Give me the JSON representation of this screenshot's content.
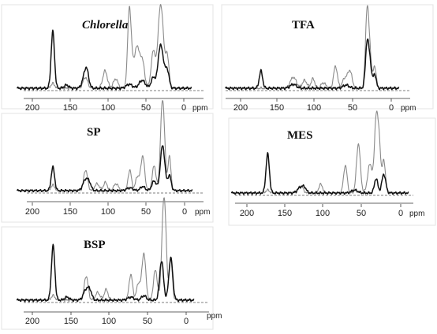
{
  "chart_data": [
    {
      "type": "line",
      "title": "Chlorella",
      "xlabel": "ppm",
      "xlim": [
        220,
        -10
      ],
      "x_ticks": [
        200,
        150,
        100,
        50,
        0
      ],
      "series": [
        {
          "color": "#111111",
          "peaks": [
            [
              173,
              0.72,
              2.2
            ],
            [
              155,
              0.04,
              3
            ],
            [
              130,
              0.18,
              3.5
            ],
            [
              128,
              0.1,
              2.5
            ],
            [
              72,
              0.05,
              4
            ],
            [
              55,
              0.1,
              4
            ],
            [
              40,
              0.14,
              3
            ],
            [
              32,
              0.42,
              2.5
            ],
            [
              28,
              0.32,
              2.5
            ],
            [
              22,
              0.24,
              2.5
            ]
          ]
        },
        {
          "color": "#8a8a8a",
          "peaks": [
            [
              173,
              0.06,
              2.5
            ],
            [
              130,
              0.14,
              3
            ],
            [
              104,
              0.22,
              3
            ],
            [
              90,
              0.12,
              3
            ],
            [
              72,
              1.0,
              2.2
            ],
            [
              68,
              0.25,
              2
            ],
            [
              62,
              0.52,
              3
            ],
            [
              55,
              0.36,
              3
            ],
            [
              40,
              0.48,
              3
            ],
            [
              32,
              0.84,
              2.5
            ],
            [
              28,
              0.62,
              2.3
            ],
            [
              22,
              0.44,
              2.3
            ]
          ]
        }
      ]
    },
    {
      "type": "line",
      "title": "TFA",
      "xlabel": "ppm",
      "xlim": [
        220,
        -10
      ],
      "x_ticks": [
        200,
        150,
        100,
        50,
        0
      ],
      "series": [
        {
          "color": "#111111",
          "peaks": [
            [
              173,
              0.22,
              2.2
            ],
            [
              130,
              0.05,
              4
            ],
            [
              60,
              0.04,
              4
            ],
            [
              32,
              0.58,
              2.2
            ],
            [
              28,
              0.28,
              2
            ],
            [
              22,
              0.18,
              2
            ]
          ]
        },
        {
          "color": "#8a8a8a",
          "peaks": [
            [
              130,
              0.14,
              4
            ],
            [
              115,
              0.1,
              3
            ],
            [
              104,
              0.12,
              2.5
            ],
            [
              90,
              0.07,
              3
            ],
            [
              74,
              0.28,
              2.5
            ],
            [
              62,
              0.12,
              3
            ],
            [
              55,
              0.22,
              3
            ],
            [
              32,
              1.0,
              2.2
            ],
            [
              28,
              0.36,
              2
            ],
            [
              22,
              0.28,
              2
            ]
          ]
        }
      ]
    },
    {
      "type": "line",
      "title": "SP",
      "xlabel": "ppm",
      "xlim": [
        220,
        -10
      ],
      "x_ticks": [
        200,
        150,
        100,
        50,
        0
      ],
      "series": [
        {
          "color": "#111111",
          "peaks": [
            [
              173,
              0.34,
              2.2
            ],
            [
              130,
              0.16,
              3.5
            ],
            [
              125,
              0.08,
              2.5
            ],
            [
              72,
              0.04,
              4
            ],
            [
              55,
              0.06,
              3
            ],
            [
              40,
              0.14,
              3
            ],
            [
              30,
              0.48,
              2.5
            ],
            [
              27,
              0.3,
              2.3
            ],
            [
              20,
              0.22,
              2.3
            ]
          ]
        },
        {
          "color": "#8a8a8a",
          "peaks": [
            [
              173,
              0.08,
              2.5
            ],
            [
              130,
              0.3,
              2.5
            ],
            [
              115,
              0.1,
              3
            ],
            [
              104,
              0.12,
              2.5
            ],
            [
              90,
              0.1,
              3
            ],
            [
              72,
              0.3,
              2.2
            ],
            [
              62,
              0.2,
              2.5
            ],
            [
              55,
              0.5,
              2.5
            ],
            [
              40,
              0.36,
              2.5
            ],
            [
              30,
              1.0,
              2.2
            ],
            [
              27,
              0.66,
              2
            ],
            [
              20,
              0.5,
              2
            ]
          ]
        }
      ]
    },
    {
      "type": "line",
      "title": "MES",
      "xlabel": "ppm",
      "xlim": [
        220,
        -10
      ],
      "x_ticks": [
        200,
        150,
        100,
        50,
        0
      ],
      "series": [
        {
          "color": "#111111",
          "peaks": [
            [
              173,
              0.54,
              2.2
            ],
            [
              130,
              0.08,
              4
            ],
            [
              125,
              0.05,
              2.5
            ],
            [
              60,
              0.04,
              4
            ],
            [
              32,
              0.2,
              2.2
            ],
            [
              22,
              0.26,
              2.5
            ]
          ]
        },
        {
          "color": "#8a8a8a",
          "peaks": [
            [
              173,
              0.04,
              2.5
            ],
            [
              130,
              0.1,
              3
            ],
            [
              104,
              0.12,
              2.5
            ],
            [
              72,
              0.38,
              2.3
            ],
            [
              55,
              0.68,
              2.5
            ],
            [
              40,
              0.4,
              3
            ],
            [
              32,
              1.0,
              2.2
            ],
            [
              28,
              0.66,
              2
            ],
            [
              22,
              0.46,
              2
            ]
          ]
        }
      ]
    },
    {
      "type": "line",
      "title": "BSP",
      "xlabel": "ppm",
      "xlim": [
        220,
        -10
      ],
      "x_ticks": [
        200,
        150,
        100,
        50,
        0
      ],
      "series": [
        {
          "color": "#111111",
          "peaks": [
            [
              173,
              0.72,
              2.2
            ],
            [
              155,
              0.04,
              3
            ],
            [
              130,
              0.14,
              3.5
            ],
            [
              125,
              0.1,
              2.5
            ],
            [
              72,
              0.04,
              4
            ],
            [
              55,
              0.06,
              3
            ],
            [
              32,
              0.52,
              2.5
            ],
            [
              20,
              0.56,
              2.5
            ]
          ]
        },
        {
          "color": "#8a8a8a",
          "peaks": [
            [
              173,
              0.06,
              2.5
            ],
            [
              130,
              0.32,
              2.5
            ],
            [
              115,
              0.1,
              3
            ],
            [
              104,
              0.14,
              2.5
            ],
            [
              72,
              0.34,
              2.3
            ],
            [
              62,
              0.22,
              2.5
            ],
            [
              55,
              0.62,
              2.5
            ],
            [
              40,
              0.4,
              2.5
            ],
            [
              30,
              1.0,
              2.2
            ],
            [
              27,
              0.74,
              2
            ],
            [
              20,
              0.56,
              2
            ]
          ]
        }
      ]
    }
  ]
}
